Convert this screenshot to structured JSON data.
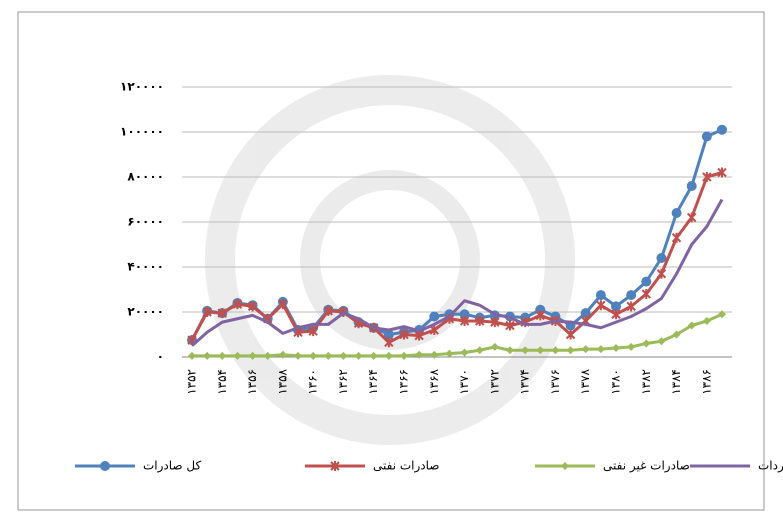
{
  "chart_data": {
    "type": "line",
    "categories": [
      "۱۳۵۲",
      null,
      "۱۳۵۴",
      null,
      "۱۳۵۶",
      null,
      "۱۳۵۸",
      null,
      "۱۳۶۰",
      null,
      "۱۳۶۲",
      null,
      "۱۳۶۴",
      null,
      "۱۳۶۶",
      null,
      "۱۳۶۸",
      null,
      "۱۳۷۰",
      null,
      "۱۳۷۲",
      null,
      "۱۳۷۴",
      null,
      "۱۳۷۶",
      null,
      "۱۳۷۸",
      null,
      "۱۳۸۰",
      null,
      "۱۳۸۲",
      null,
      "۱۳۸۴",
      null,
      "۱۳۸۶",
      null
    ],
    "series": [
      {
        "name": "کل صادرات",
        "color": "#4f81bd",
        "marker": "circle",
        "values": [
          7500,
          20500,
          19500,
          24000,
          23000,
          17000,
          24500,
          12000,
          13000,
          21000,
          20500,
          15500,
          13000,
          10000,
          11000,
          12000,
          18000,
          19000,
          19000,
          17500,
          18500,
          18000,
          17500,
          21000,
          18000,
          14000,
          19500,
          27500,
          22500,
          27500,
          33500,
          44000,
          64000,
          76000,
          98000,
          101000
        ]
      },
      {
        "name": "صادرات نفتی",
        "color": "#c0504d",
        "marker": "star",
        "values": [
          7500,
          20000,
          19500,
          23500,
          22500,
          17000,
          23500,
          11000,
          11500,
          20500,
          20000,
          15000,
          13000,
          6500,
          10000,
          9500,
          12000,
          17000,
          16000,
          16000,
          15500,
          14000,
          15500,
          18500,
          16000,
          10000,
          16000,
          23000,
          19000,
          22500,
          28000,
          37000,
          53000,
          62000,
          80000,
          82000
        ]
      },
      {
        "name": "صادرات غیر نفتی",
        "color": "#9bbb59",
        "marker": "diamond",
        "values": [
          500,
          500,
          500,
          500,
          500,
          500,
          1000,
          500,
          500,
          500,
          500,
          500,
          500,
          500,
          500,
          1000,
          1000,
          1500,
          2000,
          3000,
          4500,
          3000,
          3000,
          3000,
          3000,
          3000,
          3500,
          3500,
          4000,
          4500,
          6000,
          7000,
          10000,
          14000,
          16000,
          19000
        ]
      },
      {
        "name": "واردات",
        "color": "#8064a2",
        "marker": "none",
        "values": [
          5000,
          11000,
          15500,
          17000,
          18500,
          15500,
          10500,
          13000,
          14500,
          14500,
          19500,
          17000,
          13000,
          12000,
          13500,
          11500,
          14500,
          18000,
          25000,
          23000,
          19000,
          17500,
          14500,
          14500,
          16000,
          15500,
          14500,
          13000,
          15500,
          18000,
          21500,
          26000,
          37000,
          50000,
          58000,
          70000
        ]
      }
    ],
    "ylim": [
      0,
      120000
    ],
    "yticks": [
      {
        "value": 0,
        "label": "۰"
      },
      {
        "value": 20000,
        "label": "۲۰۰۰۰"
      },
      {
        "value": 40000,
        "label": "۴۰۰۰۰"
      },
      {
        "value": 60000,
        "label": "۶۰۰۰۰"
      },
      {
        "value": 80000,
        "label": "۸۰۰۰۰"
      },
      {
        "value": 100000,
        "label": "۱۰۰۰۰۰"
      },
      {
        "value": 120000,
        "label": "۱۲۰۰۰۰"
      }
    ],
    "grid": true,
    "legend": "bottom"
  }
}
